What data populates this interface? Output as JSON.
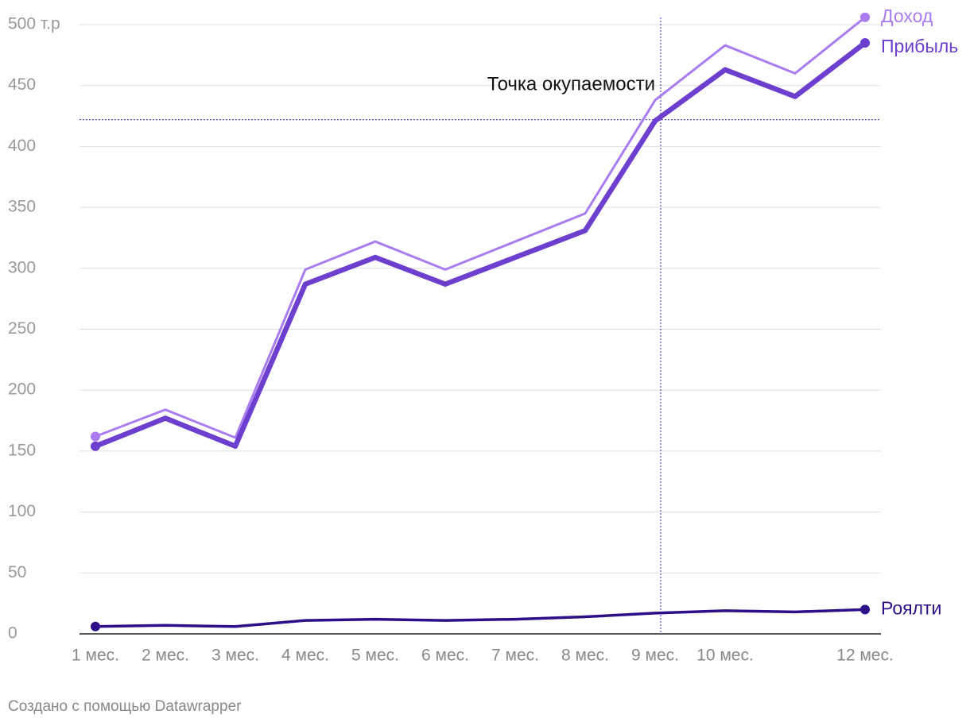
{
  "chart_data": {
    "type": "line",
    "categories": [
      "1 мес.",
      "2 мес.",
      "3 мес.",
      "4 мес.",
      "5 мес.",
      "6 мес.",
      "7 мес.",
      "8 мес.",
      "9 мес.",
      "10 мес.",
      null,
      "12 мес."
    ],
    "series": [
      {
        "name": "Доход",
        "color": "#a97cf0",
        "values": [
          162,
          184,
          161,
          299,
          322,
          299,
          322,
          345,
          438,
          483,
          460,
          506
        ]
      },
      {
        "name": "Прибыль",
        "color": "#6c3fcf",
        "values": [
          154,
          177,
          154,
          287,
          309,
          287,
          309,
          331,
          421,
          463,
          441,
          485
        ]
      },
      {
        "name": "Роялти",
        "color": "#2e0f8a",
        "values": [
          6,
          7,
          6,
          11,
          12,
          11,
          12,
          14,
          17,
          19,
          18,
          20
        ]
      }
    ],
    "ylim": [
      0,
      500
    ],
    "yticks": [
      0,
      50,
      100,
      150,
      200,
      250,
      300,
      350,
      400,
      450,
      {
        "value": 500,
        "label": "500 т.р"
      }
    ],
    "grid": true,
    "annotation": {
      "text": "Точка окупаемости",
      "y": 422,
      "x": "9 мес."
    },
    "footer": "Создано с помощью Datawrapper"
  }
}
